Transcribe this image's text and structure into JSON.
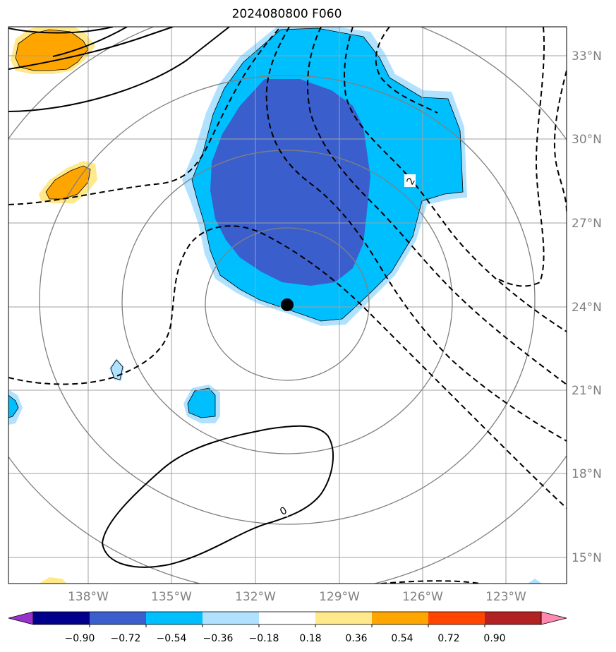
{
  "title": "2024080800 F060",
  "map": {
    "lat_labels": [
      "33°N",
      "30°N",
      "27°N",
      "24°N",
      "21°N",
      "18°N",
      "15°N"
    ],
    "lon_labels": [
      "138°W",
      "135°W",
      "132°W",
      "129°W",
      "126°W",
      "123°W"
    ],
    "contour_labels": [
      "2",
      "0"
    ],
    "center_marker": "storm-center",
    "range_rings": 4
  },
  "colorbar": {
    "ticks": [
      "−0.90",
      "−0.72",
      "−0.54",
      "−0.36",
      "−0.18",
      "0.18",
      "0.36",
      "0.54",
      "0.72",
      "0.90"
    ],
    "colors": [
      "#9932cc",
      "#00008b",
      "#3a5fcd",
      "#00bfff",
      "#b0e2ff",
      "#ffffff",
      "#ffe98a",
      "#ffa500",
      "#ff4500",
      "#b22222",
      "#ff89b0"
    ]
  }
}
